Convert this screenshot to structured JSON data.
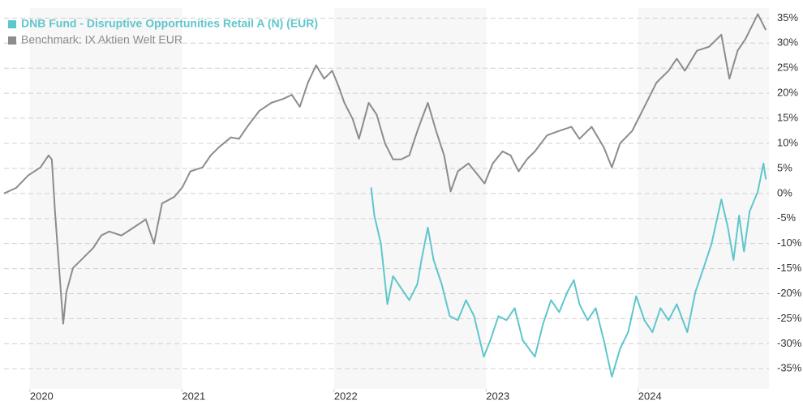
{
  "chart_data": {
    "type": "line",
    "xlim": [
      2019.83,
      2024.86
    ],
    "xticks": [
      2020,
      2021,
      2022,
      2023,
      2024
    ],
    "ylim": [
      -39,
      37
    ],
    "yticks": [
      {
        "value": -35,
        "label": "-35%"
      },
      {
        "value": -30,
        "label": "-30%"
      },
      {
        "value": -25,
        "label": "-25%"
      },
      {
        "value": -20,
        "label": "-20%"
      },
      {
        "value": -15,
        "label": "-15%"
      },
      {
        "value": -10,
        "label": "-10%"
      },
      {
        "value": -5,
        "label": "-5%"
      },
      {
        "value": 0,
        "label": "0%"
      },
      {
        "value": 5,
        "label": "5%"
      },
      {
        "value": 10,
        "label": "10%"
      },
      {
        "value": 15,
        "label": "15%"
      },
      {
        "value": 20,
        "label": "20%"
      },
      {
        "value": 25,
        "label": "25%"
      },
      {
        "value": 30,
        "label": "30%"
      },
      {
        "value": 35,
        "label": "35%"
      }
    ],
    "grid": true,
    "series": [
      {
        "name": "DNB Fund - Disruptive Opportunities Retail A (N) (EUR)",
        "color": "#5fc6cc",
        "x": [
          2022.244,
          2022.265,
          2022.308,
          2022.351,
          2022.388,
          2022.441,
          2022.495,
          2022.548,
          2022.575,
          2022.617,
          2022.655,
          2022.708,
          2022.761,
          2022.814,
          2022.868,
          2022.921,
          2022.985,
          2023.028,
          2023.081,
          2023.134,
          2023.188,
          2023.241,
          2023.321,
          2023.374,
          2023.427,
          2023.481,
          2023.534,
          2023.577,
          2023.614,
          2023.667,
          2023.721,
          2023.774,
          2023.827,
          2023.881,
          2023.934,
          2023.987,
          2024.041,
          2024.094,
          2024.147,
          2024.2,
          2024.254,
          2024.323,
          2024.376,
          2024.43,
          2024.483,
          2024.547,
          2024.59,
          2024.627,
          2024.664,
          2024.696,
          2024.733,
          2024.787,
          2024.824,
          2024.84
        ],
        "values": [
          1.2,
          -4.4,
          -10,
          -22.1,
          -16.5,
          -18.9,
          -21.3,
          -18.1,
          -13.3,
          -6.8,
          -13.3,
          -18.1,
          -24.5,
          -25.3,
          -21.3,
          -24.5,
          -32.6,
          -29.3,
          -24.5,
          -25.3,
          -22.9,
          -29.3,
          -32.6,
          -26.1,
          -21.3,
          -23.7,
          -19.7,
          -17.3,
          -22.1,
          -25.3,
          -22.9,
          -29.3,
          -36.6,
          -31,
          -27.7,
          -20.5,
          -25.3,
          -27.7,
          -22.9,
          -25.3,
          -22.1,
          -27.7,
          -19.7,
          -14.9,
          -10,
          -1.2,
          -6.8,
          -13.3,
          -4.4,
          -11.6,
          -3.6,
          0.4,
          6,
          2.8
        ]
      },
      {
        "name": "Benchmark: IX Aktien Welt EUR",
        "color": "#8c8c8c",
        "x": [
          2019.829,
          2019.909,
          2019.989,
          2020.069,
          2020.123,
          2020.144,
          2020.165,
          2020.192,
          2020.219,
          2020.24,
          2020.283,
          2020.336,
          2020.416,
          2020.469,
          2020.522,
          2020.602,
          2020.682,
          2020.762,
          2020.816,
          2020.869,
          2020.949,
          2021.002,
          2021.055,
          2021.135,
          2021.189,
          2021.242,
          2021.322,
          2021.375,
          2021.429,
          2021.509,
          2021.588,
          2021.668,
          2021.722,
          2021.775,
          2021.828,
          2021.882,
          2021.935,
          2021.988,
          2022.031,
          2022.068,
          2022.122,
          2022.164,
          2022.228,
          2022.281,
          2022.335,
          2022.388,
          2022.441,
          2022.495,
          2022.548,
          2022.617,
          2022.671,
          2022.724,
          2022.767,
          2022.814,
          2022.884,
          2022.948,
          2022.99,
          2023.044,
          2023.108,
          2023.161,
          2023.214,
          2023.268,
          2023.321,
          2023.401,
          2023.481,
          2023.561,
          2023.614,
          2023.694,
          2023.774,
          2023.827,
          2023.881,
          2023.961,
          2024.041,
          2024.12,
          2024.2,
          2024.254,
          2024.307,
          2024.387,
          2024.467,
          2024.547,
          2024.6,
          2024.654,
          2024.707,
          2024.787,
          2024.84
        ],
        "values": [
          0,
          1.1,
          3.6,
          5.2,
          7.6,
          6.8,
          -3.6,
          -14.9,
          -26,
          -19.7,
          -14.9,
          -13.3,
          -10.9,
          -8.4,
          -7.6,
          -8.4,
          -6.8,
          -5.2,
          -10,
          -2,
          -0.7,
          1.2,
          4.4,
          5.2,
          7.6,
          9.2,
          11.2,
          10.9,
          13.3,
          16.5,
          18.1,
          18.9,
          19.7,
          17.3,
          22.1,
          25.6,
          22.9,
          24.5,
          21.3,
          18.1,
          14.9,
          10.9,
          18.1,
          15.7,
          10,
          6.8,
          6.8,
          7.6,
          12.5,
          18.1,
          12.5,
          7.6,
          0.4,
          4.4,
          6,
          3.6,
          2,
          6,
          8.4,
          7.6,
          4.4,
          6.8,
          8.4,
          11.6,
          12.5,
          13.3,
          10.9,
          13.3,
          9.2,
          5.2,
          10,
          12.5,
          17.3,
          22.1,
          24.5,
          26.9,
          24.5,
          28.5,
          29.3,
          31.7,
          22.9,
          28.5,
          30.9,
          35.8,
          32.6
        ]
      }
    ]
  }
}
